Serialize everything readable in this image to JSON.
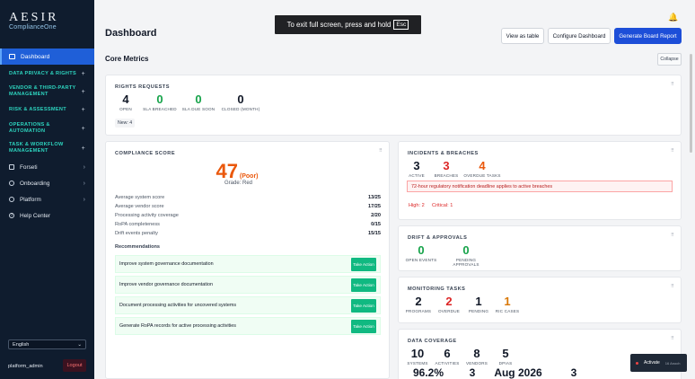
{
  "sidebar": {
    "brand": "AESIR",
    "brand_sub": "ComplianceOne",
    "dashboard": "Dashboard",
    "sections": [
      "DATA PRIVACY & RIGHTS",
      "VENDOR & THIRD-PARTY MANAGEMENT",
      "RISK & ASSESSMENT",
      "OPERATIONS & AUTOMATION",
      "TASK & WORKFLOW MANAGEMENT"
    ],
    "items": [
      "Forseti",
      "Onboarding",
      "Platform",
      "Help Center"
    ],
    "language": "English",
    "user": "platform_admin",
    "logout": "Logout"
  },
  "header": {
    "title": "Dashboard",
    "fullscreen_msg": "To exit full screen, press and hold",
    "fullscreen_key": "Esc",
    "btn_table": "View as table",
    "btn_configure": "Configure Dashboard",
    "btn_report": "Generate Board Report"
  },
  "core": {
    "title": "Core Metrics",
    "collapse": "Collapse"
  },
  "rights": {
    "title": "RIGHTS REQUESTS",
    "stats": [
      {
        "n": "4",
        "l": "OPEN"
      },
      {
        "n": "0",
        "l": "SLA BREACHED"
      },
      {
        "n": "0",
        "l": "SLA DUE SOON"
      },
      {
        "n": "0",
        "l": "CLOSED (MONTH)"
      }
    ],
    "new": "New: 4"
  },
  "compliance": {
    "title": "COMPLIANCE SCORE",
    "score": "47",
    "rating": "(Poor)",
    "grade": "Grade: Red",
    "rows": [
      {
        "label": "Average system score",
        "value": "13/25"
      },
      {
        "label": "Average vendor score",
        "value": "17/25"
      },
      {
        "label": "Processing activity coverage",
        "value": "2/20"
      },
      {
        "label": "RoPA completeness",
        "value": "0/15"
      },
      {
        "label": "Drift events penalty",
        "value": "15/15"
      }
    ],
    "rec_title": "Recommendations",
    "recs": [
      "Improve system governance documentation",
      "Improve vendor governance documentation",
      "Document processing activities for uncovered systems",
      "Generate RoPA records for active processing activities"
    ],
    "action": "Take Action"
  },
  "incidents": {
    "title": "INCIDENTS & BREACHES",
    "stats": [
      {
        "n": "3",
        "l": "ACTIVE"
      },
      {
        "n": "3",
        "l": "BREACHES"
      },
      {
        "n": "4",
        "l": "OVERDUE TASKS"
      }
    ],
    "alert": "72-hour regulatory notification deadline applies to active breaches",
    "high": "High: 2",
    "critical": "Critical: 1"
  },
  "drift": {
    "title": "DRIFT & APPROVALS",
    "stats": [
      {
        "n": "0",
        "l": "OPEN EVENTS"
      },
      {
        "n": "0",
        "l": "PENDING APPROVALS"
      }
    ]
  },
  "monitoring": {
    "title": "MONITORING TASKS",
    "stats": [
      {
        "n": "2",
        "l": "PROGRAMS"
      },
      {
        "n": "2",
        "l": "OVERDUE"
      },
      {
        "n": "1",
        "l": "PENDING"
      },
      {
        "n": "1",
        "l": "RIC CASES"
      }
    ]
  },
  "coverage": {
    "title": "DATA COVERAGE",
    "stats": [
      {
        "n": "10",
        "l": "SYSTEMS"
      },
      {
        "n": "6",
        "l": "ACTIVITIES"
      },
      {
        "n": "8",
        "l": "VENDORS"
      },
      {
        "n": "5",
        "l": "DPIAS"
      }
    ],
    "row2": [
      "96.2%",
      "3",
      "Aug 2026",
      "3"
    ]
  },
  "toast": {
    "label": "Activate",
    "sub": "16 Anoch"
  }
}
